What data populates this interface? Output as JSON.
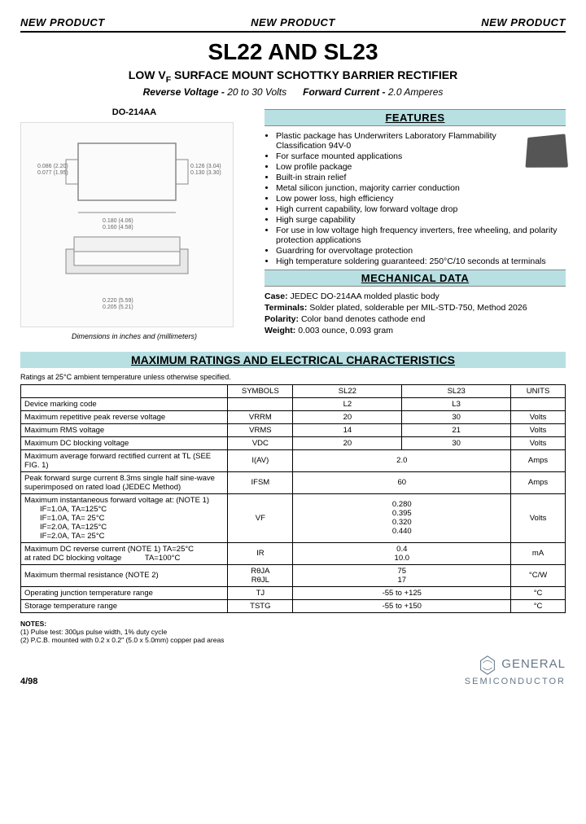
{
  "header": {
    "banner": "NEW PRODUCT"
  },
  "title": "SL22 AND SL23",
  "subtitle_prefix": "LOW V",
  "subtitle_sub": "F",
  "subtitle_rest": " SURFACE MOUNT SCHOTTKY BARRIER RECTIFIER",
  "specs": {
    "rv_label": "Reverse Voltage -",
    "rv_val": "20 to 30 Volts",
    "fc_label": "Forward Current -",
    "fc_val": "2.0 Amperes"
  },
  "package": {
    "label": "DO-214AA",
    "caption": "Dimensions in inches and (millimeters)"
  },
  "sections": {
    "features": "FEATURES",
    "mechanical": "MECHANICAL DATA",
    "ratings": "MAXIMUM RATINGS AND ELECTRICAL CHARACTERISTICS"
  },
  "features": [
    "Plastic package has Underwriters Laboratory Flammability Classification 94V-0",
    "For surface mounted applications",
    "Low profile package",
    "Built-in strain relief",
    "Metal silicon junction, majority carrier conduction",
    "Low power loss, high efficiency",
    "High current capability, low forward voltage drop",
    "High surge capability",
    "For use in low voltage high frequency inverters, free wheeling, and polarity protection applications",
    "Guardring for overvoltage protection",
    "High temperature soldering guaranteed: 250°C/10 seconds at terminals"
  ],
  "mechanical": {
    "case_label": "Case:",
    "case": "JEDEC DO-214AA molded plastic body",
    "terminals_label": "Terminals:",
    "terminals": "Solder plated, solderable per MIL-STD-750, Method 2026",
    "polarity_label": "Polarity:",
    "polarity": "Color band denotes cathode end",
    "weight_label": "Weight:",
    "weight": "0.003 ounce, 0.093 gram"
  },
  "ratings_note": "Ratings at 25°C ambient temperature unless otherwise specified.",
  "table": {
    "headers": {
      "symbols": "SYMBOLS",
      "sl22": "SL22",
      "sl23": "SL23",
      "units": "UNITS"
    },
    "rows": [
      {
        "param": "Device marking code",
        "symbol": "",
        "sl22": "L2",
        "sl23": "L3",
        "units": "",
        "merged": false
      },
      {
        "param": "Maximum repetitive peak reverse voltage",
        "symbol": "VRRM",
        "sl22": "20",
        "sl23": "30",
        "units": "Volts",
        "merged": false
      },
      {
        "param": "Maximum RMS voltage",
        "symbol": "VRMS",
        "sl22": "14",
        "sl23": "21",
        "units": "Volts",
        "merged": false
      },
      {
        "param": "Maximum DC blocking voltage",
        "symbol": "VDC",
        "sl22": "20",
        "sl23": "30",
        "units": "Volts",
        "merged": false
      },
      {
        "param": "Maximum average forward rectified current at TL (SEE FIG. 1)",
        "symbol": "I(AV)",
        "val": "2.0",
        "units": "Amps",
        "merged": true
      },
      {
        "param": "Peak forward surge current 8.3ms single half sine-wave superimposed on rated load (JEDEC Method)",
        "symbol": "IFSM",
        "val": "60",
        "units": "Amps",
        "merged": true
      },
      {
        "param": "Maximum instantaneous forward voltage at: (NOTE 1)\n  IF=1.0A, TA=125°C\n  IF=1.0A, TA= 25°C\n  IF=2.0A, TA=125°C\n  IF=2.0A, TA= 25°C",
        "symbol": "VF",
        "val": "0.280\n0.395\n0.320\n0.440",
        "units": "Volts",
        "merged": true
      },
      {
        "param": "Maximum DC reverse current (NOTE 1) TA=25°C\nat rated DC blocking voltage   TA=100°C",
        "symbol": "IR",
        "val": "0.4\n10.0",
        "units": "mA",
        "merged": true
      },
      {
        "param": "Maximum thermal resistance (NOTE 2)",
        "symbol": "RθJA\nRθJL",
        "val": "75\n17",
        "units": "°C/W",
        "merged": true
      },
      {
        "param": "Operating junction temperature range",
        "symbol": "TJ",
        "val": "-55 to +125",
        "units": "°C",
        "merged": true
      },
      {
        "param": "Storage temperature range",
        "symbol": "TSTG",
        "val": "-55 to +150",
        "units": "°C",
        "merged": true
      }
    ]
  },
  "notes": {
    "heading": "NOTES:",
    "n1": "(1) Pulse test: 300μs pulse width, 1% duty cycle",
    "n2": "(2) P.C.B. mounted with 0.2 x 0.2\" (5.0 x 5.0mm) copper pad areas"
  },
  "footer": {
    "date": "4/98",
    "company1": "GENERAL",
    "company2": "SEMICONDUCTOR"
  }
}
